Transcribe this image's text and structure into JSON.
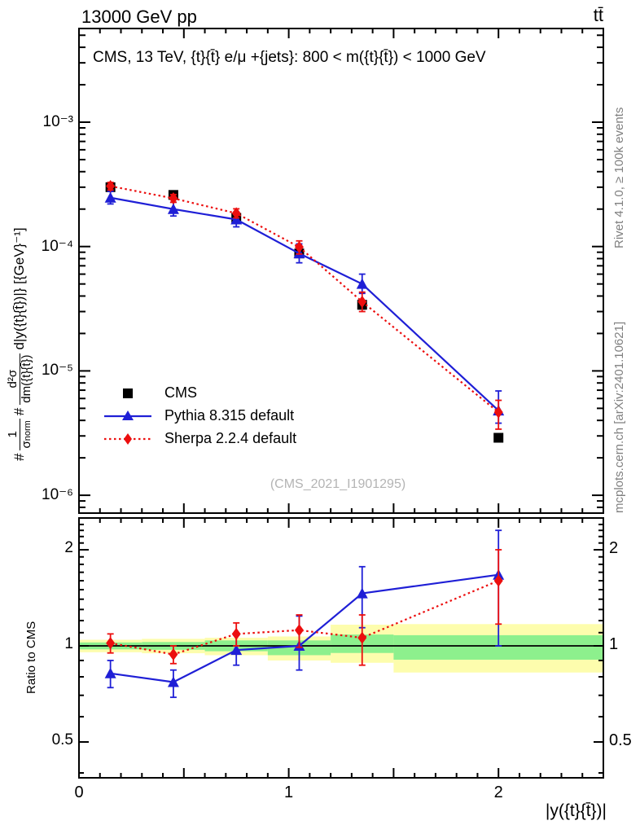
{
  "header": {
    "left": "13000 GeV pp",
    "right": "tt̄"
  },
  "main": {
    "title": "CMS, 13 TeV, {t}{t̄} e/μ +{jets}: 800 < m({t}{t̄}) < 1000 GeV",
    "watermark": "(CMS_2021_I1901295)"
  },
  "labels": {
    "y": {
      "hash1": "#",
      "frac1_num": "1",
      "frac1_den_base": "σ",
      "frac1_den_sub": "norm",
      "hash2": "#",
      "frac2_num": "d²σ",
      "frac2_den": "dm({t}{t̄})",
      "suffix": "d|y({t}{t̄})|} [{GeV}⁻¹]"
    },
    "x": "|y({t}{t̄})|",
    "ratio_y": "Ratio to CMS"
  },
  "right_margin": {
    "top": "Rivet 4.1.0, ≥ 100k events",
    "bottom": "mcplots.cern.ch [arXiv:2401.10621]"
  },
  "chart_data": {
    "type": "scatter",
    "x": [
      0.15,
      0.45,
      0.75,
      1.05,
      1.35,
      2.0
    ],
    "bin_edges": [
      0,
      0.3,
      0.6,
      0.9,
      1.2,
      1.5,
      2.5
    ],
    "series": [
      {
        "name": "CMS",
        "marker": "square",
        "color": "#000000",
        "line": "none",
        "values": [
          0.0003,
          0.00026,
          0.00017,
          8.8e-05,
          3.4e-05,
          2.9e-06
        ],
        "err_lo": [
          0.000285,
          0.000247,
          0.00016,
          8.2e-05,
          3.15e-05,
          2.75e-06
        ],
        "err_hi": [
          0.000316,
          0.000274,
          0.000181,
          9.4e-05,
          3.67e-05,
          3.06e-06
        ]
      },
      {
        "name": "Pythia 8.315 default",
        "marker": "triangle",
        "color": "#1f1fd6",
        "line": "solid",
        "values": [
          0.000247,
          0.0002,
          0.000165,
          8.8e-05,
          5e-05,
          4.8e-06
        ],
        "err_lo": [
          0.00022,
          0.000176,
          0.000144,
          7.4e-05,
          4.2e-05,
          3.8e-06
        ],
        "err_hi": [
          0.000277,
          0.000227,
          0.000189,
          0.000105,
          6e-05,
          6.9e-06
        ],
        "ratio": [
          0.82,
          0.77,
          0.97,
          1.0,
          1.46,
          1.67
        ],
        "ratio_err_lo": [
          0.74,
          0.69,
          0.87,
          0.84,
          1.14,
          1.0
        ],
        "ratio_err_hi": [
          0.9,
          0.84,
          1.08,
          1.24,
          1.77,
          2.3
        ]
      },
      {
        "name": "Sherpa 2.2.4 default",
        "marker": "diamond",
        "color": "#ec0e0e",
        "line": "dotted",
        "values": [
          0.000306,
          0.000244,
          0.000185,
          9.9e-05,
          3.6e-05,
          4.65e-06
        ],
        "err_lo": [
          0.000285,
          0.000227,
          0.00017,
          8.7e-05,
          3e-05,
          3.4e-06
        ],
        "err_hi": [
          0.000328,
          0.000262,
          0.000201,
          0.000111,
          4.3e-05,
          5.8e-06
        ],
        "ratio": [
          1.02,
          0.94,
          1.09,
          1.12,
          1.06,
          1.6
        ],
        "ratio_err_lo": [
          0.95,
          0.88,
          1.0,
          0.99,
          0.87,
          1.17
        ],
        "ratio_err_hi": [
          1.09,
          1.0,
          1.18,
          1.25,
          1.25,
          2.0
        ]
      }
    ],
    "ratio_bands": {
      "yellow_color": "#fdfdad",
      "green_color": "#8df08d",
      "yellow": [
        [
          0.955,
          1.045
        ],
        [
          0.948,
          1.052
        ],
        [
          0.935,
          1.06
        ],
        [
          0.9,
          1.07
        ],
        [
          0.885,
          1.165
        ],
        [
          0.825,
          1.17
        ]
      ],
      "green": [
        [
          0.975,
          1.025
        ],
        [
          0.972,
          1.028
        ],
        [
          0.962,
          1.04
        ],
        [
          0.935,
          1.04
        ],
        [
          0.95,
          1.085
        ],
        [
          0.905,
          1.08
        ]
      ]
    },
    "axes": {
      "x_min": 0,
      "x_max": 2.5,
      "y_scale": "log",
      "y_min": 7.2e-07,
      "y_max": 0.00566,
      "ratio_scale": "log",
      "ratio_min": 0.39,
      "ratio_max": 2.49,
      "grid": false,
      "x_tick_labels": [
        "0",
        "1",
        "2"
      ],
      "x_tick_values": [
        0,
        1,
        2
      ],
      "main_ytick_labels": [
        "10⁻³",
        "10⁻⁴",
        "10⁻⁵",
        "10⁻⁶"
      ],
      "main_ytick_values": [
        0.001,
        0.0001,
        1e-05,
        1e-06
      ],
      "ratio_ytick_labels": [
        "2",
        "1",
        "0.5"
      ],
      "ratio_ytick_values": [
        2,
        1,
        0.5
      ]
    }
  }
}
